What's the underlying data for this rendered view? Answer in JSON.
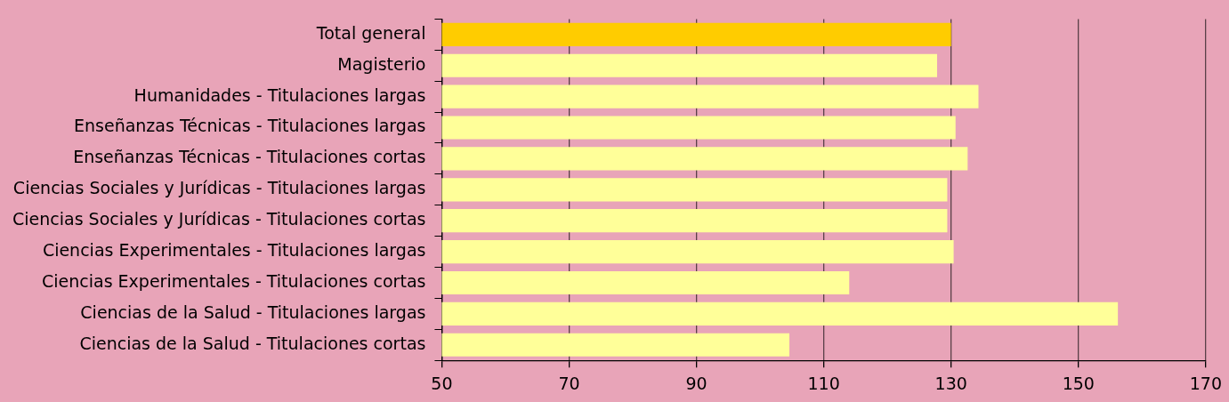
{
  "chart_data": {
    "type": "bar",
    "orientation": "horizontal",
    "categories": [
      "Total general",
      "Magisterio",
      "Humanidades - Titulaciones largas",
      "Enseñanzas Técnicas - Titulaciones largas",
      "Enseñanzas Técnicas - Titulaciones cortas",
      "Ciencias Sociales y Jurídicas - Titulaciones largas",
      "Ciencias Sociales y Jurídicas - Titulaciones cortas",
      "Ciencias Experimentales - Titulaciones largas",
      "Ciencias Experimentales - Titulaciones cortas",
      "Ciencias de la Salud - Titulaciones largas",
      "Ciencias de la Salud - Titulaciones cortas"
    ],
    "values": [
      130.0,
      127.8,
      134.3,
      130.7,
      132.6,
      129.4,
      129.4,
      130.4,
      114.0,
      156.2,
      104.6
    ],
    "colors": [
      "#ffcc00",
      "#ffff99",
      "#ffff99",
      "#ffff99",
      "#ffff99",
      "#ffff99",
      "#ffff99",
      "#ffff99",
      "#ffff99",
      "#ffff99",
      "#ffff99"
    ],
    "xlim": [
      50,
      170
    ],
    "xticks": [
      50,
      70,
      90,
      110,
      130,
      150,
      170
    ],
    "grid": "x",
    "legend": false
  }
}
